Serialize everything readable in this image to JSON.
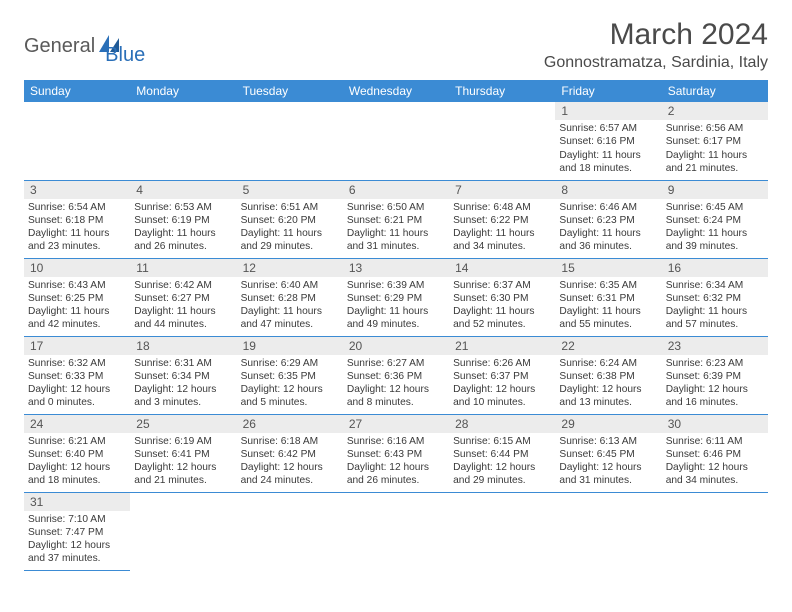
{
  "logo": {
    "part1": "General",
    "part2": "Blue"
  },
  "title": "March 2024",
  "location": "Gonnostramatza, Sardinia, Italy",
  "colors": {
    "header_bg": "#3b8bd4",
    "header_fg": "#ffffff",
    "daynum_bg": "#ececec",
    "row_border": "#3b8bd4",
    "text": "#3a3a3a",
    "title_color": "#4a4a4a",
    "logo_gray": "#5a5a5a",
    "logo_blue": "#2a6fb8"
  },
  "typography": {
    "title_fontsize": 30,
    "location_fontsize": 16,
    "header_fontsize": 12,
    "daynum_fontsize": 12,
    "body_fontsize": 10.2
  },
  "weekdays": [
    "Sunday",
    "Monday",
    "Tuesday",
    "Wednesday",
    "Thursday",
    "Friday",
    "Saturday"
  ],
  "grid": [
    [
      null,
      null,
      null,
      null,
      null,
      {
        "n": "1",
        "sunrise": "Sunrise: 6:57 AM",
        "sunset": "Sunset: 6:16 PM",
        "daylight": "Daylight: 11 hours and 18 minutes."
      },
      {
        "n": "2",
        "sunrise": "Sunrise: 6:56 AM",
        "sunset": "Sunset: 6:17 PM",
        "daylight": "Daylight: 11 hours and 21 minutes."
      }
    ],
    [
      {
        "n": "3",
        "sunrise": "Sunrise: 6:54 AM",
        "sunset": "Sunset: 6:18 PM",
        "daylight": "Daylight: 11 hours and 23 minutes."
      },
      {
        "n": "4",
        "sunrise": "Sunrise: 6:53 AM",
        "sunset": "Sunset: 6:19 PM",
        "daylight": "Daylight: 11 hours and 26 minutes."
      },
      {
        "n": "5",
        "sunrise": "Sunrise: 6:51 AM",
        "sunset": "Sunset: 6:20 PM",
        "daylight": "Daylight: 11 hours and 29 minutes."
      },
      {
        "n": "6",
        "sunrise": "Sunrise: 6:50 AM",
        "sunset": "Sunset: 6:21 PM",
        "daylight": "Daylight: 11 hours and 31 minutes."
      },
      {
        "n": "7",
        "sunrise": "Sunrise: 6:48 AM",
        "sunset": "Sunset: 6:22 PM",
        "daylight": "Daylight: 11 hours and 34 minutes."
      },
      {
        "n": "8",
        "sunrise": "Sunrise: 6:46 AM",
        "sunset": "Sunset: 6:23 PM",
        "daylight": "Daylight: 11 hours and 36 minutes."
      },
      {
        "n": "9",
        "sunrise": "Sunrise: 6:45 AM",
        "sunset": "Sunset: 6:24 PM",
        "daylight": "Daylight: 11 hours and 39 minutes."
      }
    ],
    [
      {
        "n": "10",
        "sunrise": "Sunrise: 6:43 AM",
        "sunset": "Sunset: 6:25 PM",
        "daylight": "Daylight: 11 hours and 42 minutes."
      },
      {
        "n": "11",
        "sunrise": "Sunrise: 6:42 AM",
        "sunset": "Sunset: 6:27 PM",
        "daylight": "Daylight: 11 hours and 44 minutes."
      },
      {
        "n": "12",
        "sunrise": "Sunrise: 6:40 AM",
        "sunset": "Sunset: 6:28 PM",
        "daylight": "Daylight: 11 hours and 47 minutes."
      },
      {
        "n": "13",
        "sunrise": "Sunrise: 6:39 AM",
        "sunset": "Sunset: 6:29 PM",
        "daylight": "Daylight: 11 hours and 49 minutes."
      },
      {
        "n": "14",
        "sunrise": "Sunrise: 6:37 AM",
        "sunset": "Sunset: 6:30 PM",
        "daylight": "Daylight: 11 hours and 52 minutes."
      },
      {
        "n": "15",
        "sunrise": "Sunrise: 6:35 AM",
        "sunset": "Sunset: 6:31 PM",
        "daylight": "Daylight: 11 hours and 55 minutes."
      },
      {
        "n": "16",
        "sunrise": "Sunrise: 6:34 AM",
        "sunset": "Sunset: 6:32 PM",
        "daylight": "Daylight: 11 hours and 57 minutes."
      }
    ],
    [
      {
        "n": "17",
        "sunrise": "Sunrise: 6:32 AM",
        "sunset": "Sunset: 6:33 PM",
        "daylight": "Daylight: 12 hours and 0 minutes."
      },
      {
        "n": "18",
        "sunrise": "Sunrise: 6:31 AM",
        "sunset": "Sunset: 6:34 PM",
        "daylight": "Daylight: 12 hours and 3 minutes."
      },
      {
        "n": "19",
        "sunrise": "Sunrise: 6:29 AM",
        "sunset": "Sunset: 6:35 PM",
        "daylight": "Daylight: 12 hours and 5 minutes."
      },
      {
        "n": "20",
        "sunrise": "Sunrise: 6:27 AM",
        "sunset": "Sunset: 6:36 PM",
        "daylight": "Daylight: 12 hours and 8 minutes."
      },
      {
        "n": "21",
        "sunrise": "Sunrise: 6:26 AM",
        "sunset": "Sunset: 6:37 PM",
        "daylight": "Daylight: 12 hours and 10 minutes."
      },
      {
        "n": "22",
        "sunrise": "Sunrise: 6:24 AM",
        "sunset": "Sunset: 6:38 PM",
        "daylight": "Daylight: 12 hours and 13 minutes."
      },
      {
        "n": "23",
        "sunrise": "Sunrise: 6:23 AM",
        "sunset": "Sunset: 6:39 PM",
        "daylight": "Daylight: 12 hours and 16 minutes."
      }
    ],
    [
      {
        "n": "24",
        "sunrise": "Sunrise: 6:21 AM",
        "sunset": "Sunset: 6:40 PM",
        "daylight": "Daylight: 12 hours and 18 minutes."
      },
      {
        "n": "25",
        "sunrise": "Sunrise: 6:19 AM",
        "sunset": "Sunset: 6:41 PM",
        "daylight": "Daylight: 12 hours and 21 minutes."
      },
      {
        "n": "26",
        "sunrise": "Sunrise: 6:18 AM",
        "sunset": "Sunset: 6:42 PM",
        "daylight": "Daylight: 12 hours and 24 minutes."
      },
      {
        "n": "27",
        "sunrise": "Sunrise: 6:16 AM",
        "sunset": "Sunset: 6:43 PM",
        "daylight": "Daylight: 12 hours and 26 minutes."
      },
      {
        "n": "28",
        "sunrise": "Sunrise: 6:15 AM",
        "sunset": "Sunset: 6:44 PM",
        "daylight": "Daylight: 12 hours and 29 minutes."
      },
      {
        "n": "29",
        "sunrise": "Sunrise: 6:13 AM",
        "sunset": "Sunset: 6:45 PM",
        "daylight": "Daylight: 12 hours and 31 minutes."
      },
      {
        "n": "30",
        "sunrise": "Sunrise: 6:11 AM",
        "sunset": "Sunset: 6:46 PM",
        "daylight": "Daylight: 12 hours and 34 minutes."
      }
    ],
    [
      {
        "n": "31",
        "sunrise": "Sunrise: 7:10 AM",
        "sunset": "Sunset: 7:47 PM",
        "daylight": "Daylight: 12 hours and 37 minutes."
      },
      null,
      null,
      null,
      null,
      null,
      null
    ]
  ]
}
